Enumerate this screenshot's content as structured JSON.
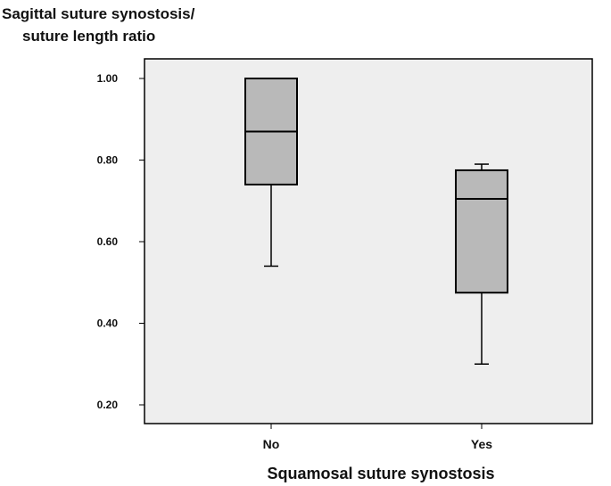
{
  "chart_data": {
    "type": "boxplot",
    "title": "",
    "ylabel": [
      "Sagittal suture synostosis/",
      "suture length ratio"
    ],
    "xlabel": "Squamosal suture synostosis",
    "ylim": [
      0.2,
      1.0
    ],
    "yticks": [
      {
        "value": 1.0,
        "label": "1.00"
      },
      {
        "value": 0.8,
        "label": "0.80"
      },
      {
        "value": 0.6,
        "label": "0.60"
      },
      {
        "value": 0.4,
        "label": "0.40"
      },
      {
        "value": 0.2,
        "label": "0.20"
      }
    ],
    "grid": false,
    "legend": "none",
    "categories": [
      "No",
      "Yes"
    ],
    "boxes": [
      {
        "category": "No",
        "min": 0.54,
        "q1": 0.74,
        "median": 0.87,
        "q3": 1.0,
        "max": 1.0
      },
      {
        "category": "Yes",
        "min": 0.3,
        "q1": 0.475,
        "median": 0.705,
        "q3": 0.775,
        "max": 0.79
      }
    ],
    "colors": {
      "plot_background": "#eeeeee",
      "box_fill": "#b9b9b9",
      "stroke": "#000000"
    }
  }
}
